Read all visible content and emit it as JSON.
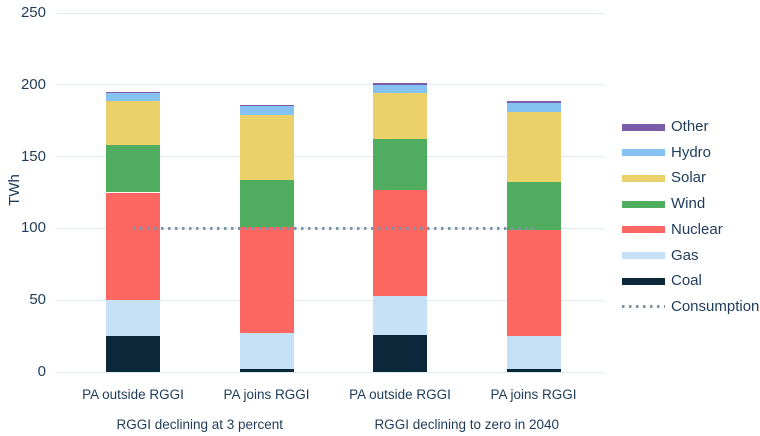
{
  "colors": {
    "background": "#ffffff",
    "gridline": "#ddeaf7",
    "axis_text": "#1e3c5a",
    "consumption": "#7e93a3"
  },
  "chart_data": {
    "type": "bar",
    "stacked": true,
    "ylabel": "TWh",
    "ylim": [
      0,
      250
    ],
    "yticks": [
      0,
      50,
      100,
      150,
      200,
      250
    ],
    "grid": true,
    "legend_position": "right",
    "categories": [
      "PA outside RGGI",
      "PA joins RGGI",
      "PA outside RGGI",
      "PA joins RGGI"
    ],
    "groups": [
      {
        "label": "RGGI declining at 3 percent",
        "category_indexes": [
          0,
          1
        ]
      },
      {
        "label": "RGGI declining to zero in 2040",
        "category_indexes": [
          2,
          3
        ]
      }
    ],
    "series": [
      {
        "name": "Coal",
        "color": "#0b2739",
        "values": [
          25,
          2,
          26,
          2
        ]
      },
      {
        "name": "Gas",
        "color": "#c6e0f6",
        "values": [
          25,
          25,
          27,
          23
        ]
      },
      {
        "name": "Nuclear",
        "color": "#fc6762",
        "values": [
          75,
          74,
          74,
          74
        ]
      },
      {
        "name": "Wind",
        "color": "#50ad5f",
        "values": [
          33,
          33,
          35,
          33
        ]
      },
      {
        "name": "Solar",
        "color": "#ead169",
        "values": [
          31,
          45,
          32,
          49
        ]
      },
      {
        "name": "Hydro",
        "color": "#85c1f1",
        "values": [
          5,
          6,
          6,
          6
        ]
      },
      {
        "name": "Other",
        "color": "#7a5ca8",
        "values": [
          1,
          1,
          1,
          2
        ]
      }
    ],
    "totals": [
      195,
      186,
      201,
      189
    ],
    "consumption_line": {
      "label": "Consumption",
      "value": 100,
      "style": "dotted",
      "color": "#7e93a3"
    },
    "legend_order": [
      "Other",
      "Hydro",
      "Solar",
      "Wind",
      "Nuclear",
      "Gas",
      "Coal",
      "Consumption"
    ]
  }
}
